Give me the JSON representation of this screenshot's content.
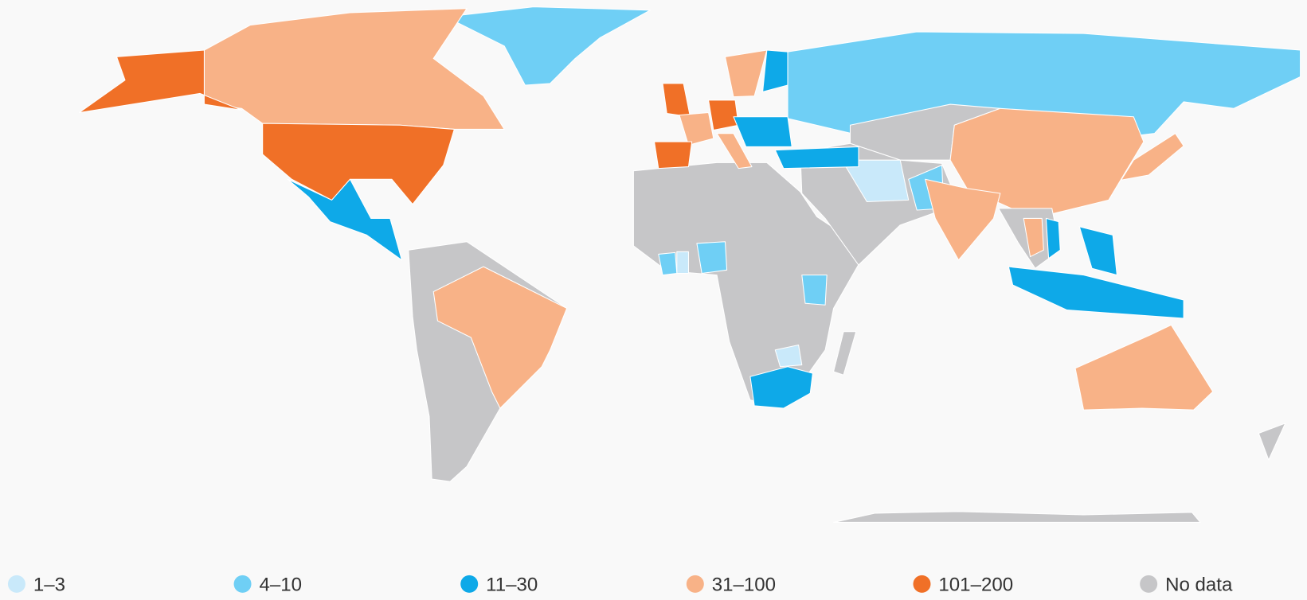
{
  "legend": [
    {
      "label": "1–3",
      "color": "#c9e9fa"
    },
    {
      "label": "4–10",
      "color": "#6fcff5"
    },
    {
      "label": "11–30",
      "color": "#0ea9e8"
    },
    {
      "label": "31–100",
      "color": "#f8b287"
    },
    {
      "label": "101–200",
      "color": "#f07027"
    },
    {
      "label": "No data",
      "color": "#c6c6c8"
    }
  ]
}
